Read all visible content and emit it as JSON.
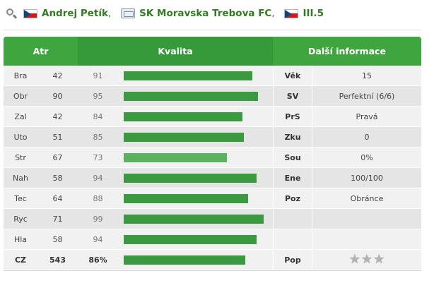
{
  "header": {
    "player_name": "Andrej Petík",
    "club": "SK Moravska Trebova FC",
    "league": "III.5",
    "separator": ","
  },
  "icons": {
    "search": "magnifier-icon",
    "nationality_flag": "czech-flag-icon",
    "club": "club-card-icon",
    "league_flag": "czech-flag-icon",
    "popularity": "star-icon"
  },
  "colors": {
    "accent_green": "#3fa63f",
    "bar_green": "#3b9a3f",
    "bar_light_green": "#5cb160",
    "link_green": "#2f7d1f"
  },
  "table": {
    "headers": {
      "atr": "Atr",
      "kvalita": "Kvalita",
      "info": "Další informace"
    },
    "rows": [
      {
        "abbr": "Bra",
        "value": "42",
        "pct": "91",
        "quality": 91,
        "info_label": "Věk",
        "info_value": "15"
      },
      {
        "abbr": "Obr",
        "value": "90",
        "pct": "95",
        "quality": 95,
        "info_label": "SV",
        "info_value": "Perfektní (6/6)"
      },
      {
        "abbr": "Zal",
        "value": "42",
        "pct": "84",
        "quality": 84,
        "info_label": "PrS",
        "info_value": "Pravá"
      },
      {
        "abbr": "Uto",
        "value": "51",
        "pct": "85",
        "quality": 85,
        "info_label": "Zku",
        "info_value": "0"
      },
      {
        "abbr": "Str",
        "value": "67",
        "pct": "73",
        "quality": 73,
        "info_label": "Sou",
        "info_value": "0%"
      },
      {
        "abbr": "Nah",
        "value": "58",
        "pct": "94",
        "quality": 94,
        "info_label": "Ene",
        "info_value": "100/100"
      },
      {
        "abbr": "Tec",
        "value": "64",
        "pct": "88",
        "quality": 88,
        "info_label": "Poz",
        "info_value": "Obránce"
      },
      {
        "abbr": "Ryc",
        "value": "71",
        "pct": "99",
        "quality": 99,
        "info_label": "",
        "info_value": ""
      },
      {
        "abbr": "Hla",
        "value": "58",
        "pct": "94",
        "quality": 94,
        "info_label": "",
        "info_value": ""
      }
    ],
    "total": {
      "abbr": "CZ",
      "value": "543",
      "pct": "86%",
      "quality": 86,
      "info_label": "Pop",
      "stars": 3
    }
  }
}
